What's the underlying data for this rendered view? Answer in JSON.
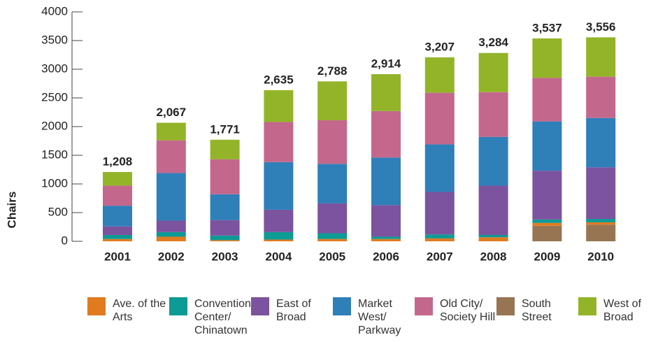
{
  "chart_data": {
    "type": "stacked_bar",
    "y_label": "Chairs",
    "categories": [
      "2001",
      "2002",
      "2003",
      "2004",
      "2005",
      "2006",
      "2007",
      "2008",
      "2009",
      "2010"
    ],
    "series": [
      {
        "name": "South Street",
        "color": "#977553",
        "values": [
          0,
          0,
          0,
          0,
          0,
          0,
          0,
          0,
          270,
          290
        ]
      },
      {
        "name": "Ave. of the Arts",
        "color": "#e07b1f",
        "values": [
          40,
          80,
          20,
          30,
          40,
          40,
          50,
          70,
          50,
          40
        ]
      },
      {
        "name": "Convention Center/ Chinatown",
        "color": "#0e9a95",
        "values": [
          70,
          80,
          80,
          130,
          100,
          40,
          70,
          40,
          60,
          60
        ]
      },
      {
        "name": "East of Broad",
        "color": "#7b539e",
        "values": [
          150,
          200,
          270,
          390,
          520,
          550,
          740,
          860,
          850,
          900
        ]
      },
      {
        "name": "Market West/ Parkway",
        "color": "#2f7fb9",
        "values": [
          360,
          830,
          450,
          830,
          690,
          830,
          830,
          850,
          860,
          860
        ]
      },
      {
        "name": "Old City/ Society Hill",
        "color": "#c4678d",
        "values": [
          350,
          570,
          610,
          700,
          760,
          810,
          900,
          780,
          760,
          720
        ]
      },
      {
        "name": "West of Broad",
        "color": "#93b429",
        "values": [
          238,
          307,
          341,
          555,
          678,
          644,
          617,
          684,
          687,
          686
        ]
      }
    ],
    "totals": {
      "values": [
        1208,
        2067,
        1771,
        2635,
        2788,
        2914,
        3207,
        3284,
        3537,
        3556
      ],
      "value_labels": [
        "1,208",
        "2,067",
        "1,771",
        "2,635",
        "2,788",
        "2,914",
        "3,207",
        "3,284",
        "3,537",
        "3,556"
      ]
    },
    "ylim": [
      0,
      4000
    ],
    "yticks": [
      0,
      500,
      1000,
      1500,
      2000,
      2500,
      3000,
      3500,
      4000
    ],
    "grid": false
  }
}
